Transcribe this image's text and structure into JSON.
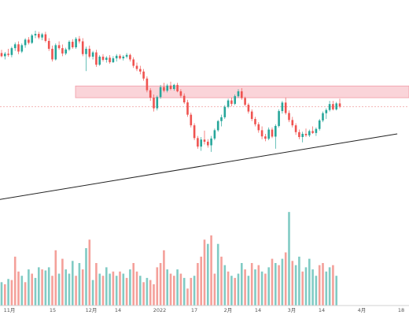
{
  "colors": {
    "up": "#26a69a",
    "down": "#ef5350",
    "volume_up": "#80cbc4",
    "volume_down": "#f4a09a",
    "zone_fill": "#f9c9cf",
    "zone_stroke": "#f19aa6",
    "trendline": "#222222",
    "price_line": "#f0a0a0",
    "axis": "#d0d0d0",
    "background": "#ffffff"
  },
  "chart_data": {
    "type": "candlestick",
    "title": "",
    "xlabel": "",
    "ylabel": "",
    "x_ticks": [
      "11月",
      "15",
      "12月",
      "14",
      "2022",
      "17",
      "2月",
      "14",
      "3月",
      "14",
      "4月",
      "18"
    ],
    "grid": false,
    "legend": "none",
    "ylim": [
      0,
      100
    ],
    "volume_ylim": [
      0,
      100
    ],
    "candles": [
      {
        "o": 79.5,
        "h": 81.0,
        "l": 77.5,
        "c": 78.0
      },
      {
        "o": 78.0,
        "h": 80.0,
        "l": 76.5,
        "c": 79.2
      },
      {
        "o": 79.2,
        "h": 81.5,
        "l": 77.8,
        "c": 78.6
      },
      {
        "o": 78.6,
        "h": 82.5,
        "l": 77.5,
        "c": 81.8
      },
      {
        "o": 81.8,
        "h": 84.5,
        "l": 80.5,
        "c": 83.6
      },
      {
        "o": 83.6,
        "h": 85.0,
        "l": 79.0,
        "c": 80.2
      },
      {
        "o": 80.2,
        "h": 84.0,
        "l": 79.5,
        "c": 83.2
      },
      {
        "o": 83.2,
        "h": 86.5,
        "l": 82.0,
        "c": 85.8
      },
      {
        "o": 85.8,
        "h": 87.0,
        "l": 83.5,
        "c": 84.3
      },
      {
        "o": 84.3,
        "h": 88.5,
        "l": 83.8,
        "c": 87.8
      },
      {
        "o": 87.8,
        "h": 90.0,
        "l": 86.5,
        "c": 88.5
      },
      {
        "o": 88.5,
        "h": 89.5,
        "l": 86.0,
        "c": 86.8
      },
      {
        "o": 86.8,
        "h": 89.0,
        "l": 85.5,
        "c": 88.3
      },
      {
        "o": 88.3,
        "h": 89.5,
        "l": 84.5,
        "c": 85.2
      },
      {
        "o": 85.2,
        "h": 86.5,
        "l": 80.5,
        "c": 81.5
      },
      {
        "o": 81.5,
        "h": 83.0,
        "l": 75.5,
        "c": 76.5
      },
      {
        "o": 76.5,
        "h": 84.0,
        "l": 76.0,
        "c": 83.2
      },
      {
        "o": 83.2,
        "h": 85.0,
        "l": 81.0,
        "c": 81.8
      },
      {
        "o": 81.8,
        "h": 83.5,
        "l": 78.0,
        "c": 79.3
      },
      {
        "o": 79.3,
        "h": 82.0,
        "l": 78.5,
        "c": 81.2
      },
      {
        "o": 81.2,
        "h": 85.5,
        "l": 80.5,
        "c": 84.8
      },
      {
        "o": 84.8,
        "h": 86.0,
        "l": 81.5,
        "c": 82.2
      },
      {
        "o": 82.2,
        "h": 87.0,
        "l": 81.5,
        "c": 86.2
      },
      {
        "o": 86.2,
        "h": 87.5,
        "l": 84.0,
        "c": 85.0
      },
      {
        "o": 85.0,
        "h": 86.5,
        "l": 78.0,
        "c": 79.0
      },
      {
        "o": 79.0,
        "h": 82.5,
        "l": 71.0,
        "c": 81.5
      },
      {
        "o": 81.5,
        "h": 83.0,
        "l": 77.0,
        "c": 77.8
      },
      {
        "o": 77.8,
        "h": 80.5,
        "l": 76.5,
        "c": 79.8
      },
      {
        "o": 79.8,
        "h": 81.0,
        "l": 73.0,
        "c": 74.0
      },
      {
        "o": 74.0,
        "h": 78.5,
        "l": 73.5,
        "c": 77.8
      },
      {
        "o": 77.8,
        "h": 79.0,
        "l": 75.5,
        "c": 76.3
      },
      {
        "o": 76.3,
        "h": 78.0,
        "l": 75.0,
        "c": 77.3
      },
      {
        "o": 77.3,
        "h": 78.5,
        "l": 74.5,
        "c": 75.2
      },
      {
        "o": 75.2,
        "h": 78.0,
        "l": 74.8,
        "c": 77.0
      },
      {
        "o": 77.0,
        "h": 79.0,
        "l": 75.5,
        "c": 78.2
      },
      {
        "o": 78.2,
        "h": 79.0,
        "l": 76.5,
        "c": 77.0
      },
      {
        "o": 77.0,
        "h": 78.5,
        "l": 76.0,
        "c": 77.8
      },
      {
        "o": 77.8,
        "h": 79.5,
        "l": 77.0,
        "c": 78.6
      },
      {
        "o": 78.6,
        "h": 79.2,
        "l": 75.5,
        "c": 76.5
      },
      {
        "o": 76.5,
        "h": 77.5,
        "l": 72.5,
        "c": 73.5
      },
      {
        "o": 73.5,
        "h": 75.0,
        "l": 71.0,
        "c": 72.0
      },
      {
        "o": 72.0,
        "h": 73.5,
        "l": 69.5,
        "c": 70.8
      },
      {
        "o": 70.8,
        "h": 72.0,
        "l": 66.5,
        "c": 67.5
      },
      {
        "o": 67.5,
        "h": 68.5,
        "l": 61.0,
        "c": 62.0
      },
      {
        "o": 62.0,
        "h": 63.0,
        "l": 57.0,
        "c": 58.5
      },
      {
        "o": 58.5,
        "h": 60.0,
        "l": 52.0,
        "c": 53.5
      },
      {
        "o": 53.5,
        "h": 59.5,
        "l": 52.5,
        "c": 58.8
      },
      {
        "o": 58.8,
        "h": 64.5,
        "l": 58.0,
        "c": 63.5
      },
      {
        "o": 63.5,
        "h": 65.5,
        "l": 61.0,
        "c": 61.8
      },
      {
        "o": 61.8,
        "h": 65.0,
        "l": 61.0,
        "c": 64.2
      },
      {
        "o": 64.2,
        "h": 66.0,
        "l": 62.0,
        "c": 62.6
      },
      {
        "o": 62.6,
        "h": 65.0,
        "l": 61.8,
        "c": 64.5
      },
      {
        "o": 64.5,
        "h": 65.5,
        "l": 61.0,
        "c": 61.5
      },
      {
        "o": 61.5,
        "h": 62.5,
        "l": 58.5,
        "c": 59.4
      },
      {
        "o": 59.4,
        "h": 60.5,
        "l": 55.5,
        "c": 56.3
      },
      {
        "o": 56.3,
        "h": 57.5,
        "l": 49.5,
        "c": 50.5
      },
      {
        "o": 50.5,
        "h": 51.5,
        "l": 44.5,
        "c": 45.5
      },
      {
        "o": 45.5,
        "h": 46.5,
        "l": 38.5,
        "c": 39.5
      },
      {
        "o": 39.5,
        "h": 40.5,
        "l": 34.5,
        "c": 35.5
      },
      {
        "o": 35.5,
        "h": 40.0,
        "l": 33.5,
        "c": 38.8
      },
      {
        "o": 38.8,
        "h": 43.0,
        "l": 36.5,
        "c": 37.8
      },
      {
        "o": 37.8,
        "h": 39.0,
        "l": 35.0,
        "c": 36.1
      },
      {
        "o": 36.1,
        "h": 40.5,
        "l": 33.0,
        "c": 39.3
      },
      {
        "o": 39.3,
        "h": 44.0,
        "l": 38.5,
        "c": 43.2
      },
      {
        "o": 43.2,
        "h": 48.0,
        "l": 42.5,
        "c": 47.5
      },
      {
        "o": 47.5,
        "h": 50.5,
        "l": 45.0,
        "c": 49.3
      },
      {
        "o": 49.3,
        "h": 55.0,
        "l": 48.5,
        "c": 54.2
      },
      {
        "o": 54.2,
        "h": 58.0,
        "l": 53.5,
        "c": 57.2
      },
      {
        "o": 57.2,
        "h": 58.5,
        "l": 54.5,
        "c": 55.6
      },
      {
        "o": 55.6,
        "h": 60.0,
        "l": 55.0,
        "c": 59.2
      },
      {
        "o": 59.2,
        "h": 62.5,
        "l": 58.5,
        "c": 61.5
      },
      {
        "o": 61.5,
        "h": 63.0,
        "l": 57.5,
        "c": 58.3
      },
      {
        "o": 58.3,
        "h": 59.0,
        "l": 54.5,
        "c": 55.2
      },
      {
        "o": 55.2,
        "h": 56.0,
        "l": 51.0,
        "c": 52.0
      },
      {
        "o": 52.0,
        "h": 53.0,
        "l": 47.5,
        "c": 48.5
      },
      {
        "o": 48.5,
        "h": 49.5,
        "l": 45.0,
        "c": 46.0
      },
      {
        "o": 46.0,
        "h": 47.0,
        "l": 42.0,
        "c": 43.2
      },
      {
        "o": 43.2,
        "h": 45.0,
        "l": 39.0,
        "c": 40.3
      },
      {
        "o": 40.3,
        "h": 41.5,
        "l": 38.0,
        "c": 39.2
      },
      {
        "o": 39.2,
        "h": 44.5,
        "l": 38.5,
        "c": 43.5
      },
      {
        "o": 43.5,
        "h": 44.5,
        "l": 39.5,
        "c": 40.2
      },
      {
        "o": 40.2,
        "h": 46.0,
        "l": 34.5,
        "c": 45.2
      },
      {
        "o": 45.2,
        "h": 53.0,
        "l": 44.5,
        "c": 52.2
      },
      {
        "o": 52.2,
        "h": 57.0,
        "l": 51.0,
        "c": 56.2
      },
      {
        "o": 56.2,
        "h": 58.5,
        "l": 50.5,
        "c": 51.3
      },
      {
        "o": 51.3,
        "h": 52.5,
        "l": 47.0,
        "c": 48.0
      },
      {
        "o": 48.0,
        "h": 49.5,
        "l": 44.5,
        "c": 45.5
      },
      {
        "o": 45.5,
        "h": 46.5,
        "l": 41.0,
        "c": 42.3
      },
      {
        "o": 42.3,
        "h": 43.5,
        "l": 39.0,
        "c": 40.0
      },
      {
        "o": 40.0,
        "h": 42.5,
        "l": 37.5,
        "c": 41.5
      },
      {
        "o": 41.5,
        "h": 44.0,
        "l": 40.0,
        "c": 40.8
      },
      {
        "o": 40.8,
        "h": 43.5,
        "l": 40.0,
        "c": 42.8
      },
      {
        "o": 42.8,
        "h": 45.0,
        "l": 41.5,
        "c": 41.9
      },
      {
        "o": 41.9,
        "h": 44.5,
        "l": 40.5,
        "c": 43.8
      },
      {
        "o": 43.8,
        "h": 48.5,
        "l": 43.0,
        "c": 47.8
      },
      {
        "o": 47.8,
        "h": 52.0,
        "l": 47.0,
        "c": 51.2
      },
      {
        "o": 51.2,
        "h": 53.5,
        "l": 48.5,
        "c": 52.7
      },
      {
        "o": 52.7,
        "h": 57.0,
        "l": 52.0,
        "c": 55.5
      },
      {
        "o": 55.5,
        "h": 57.0,
        "l": 52.5,
        "c": 53.0
      },
      {
        "o": 53.0,
        "h": 56.5,
        "l": 52.5,
        "c": 55.8
      },
      {
        "o": 55.8,
        "h": 58.0,
        "l": 53.5,
        "c": 54.3
      }
    ],
    "volume": [
      {
        "v": 22,
        "d": "up"
      },
      {
        "v": 20,
        "d": "down"
      },
      {
        "v": 25,
        "d": "up"
      },
      {
        "v": 24,
        "d": "down"
      },
      {
        "v": 46,
        "d": "down"
      },
      {
        "v": 32,
        "d": "down"
      },
      {
        "v": 28,
        "d": "up"
      },
      {
        "v": 22,
        "d": "down"
      },
      {
        "v": 34,
        "d": "up"
      },
      {
        "v": 30,
        "d": "down"
      },
      {
        "v": 26,
        "d": "up"
      },
      {
        "v": 36,
        "d": "up"
      },
      {
        "v": 34,
        "d": "down"
      },
      {
        "v": 33,
        "d": "up"
      },
      {
        "v": 36,
        "d": "up"
      },
      {
        "v": 28,
        "d": "down"
      },
      {
        "v": 52,
        "d": "down"
      },
      {
        "v": 30,
        "d": "up"
      },
      {
        "v": 44,
        "d": "down"
      },
      {
        "v": 34,
        "d": "up"
      },
      {
        "v": 30,
        "d": "up"
      },
      {
        "v": 42,
        "d": "up"
      },
      {
        "v": 28,
        "d": "down"
      },
      {
        "v": 40,
        "d": "up"
      },
      {
        "v": 34,
        "d": "down"
      },
      {
        "v": 54,
        "d": "up"
      },
      {
        "v": 62,
        "d": "down"
      },
      {
        "v": 24,
        "d": "up"
      },
      {
        "v": 40,
        "d": "down"
      },
      {
        "v": 30,
        "d": "up"
      },
      {
        "v": 28,
        "d": "down"
      },
      {
        "v": 36,
        "d": "up"
      },
      {
        "v": 30,
        "d": "up"
      },
      {
        "v": 32,
        "d": "down"
      },
      {
        "v": 28,
        "d": "up"
      },
      {
        "v": 32,
        "d": "down"
      },
      {
        "v": 30,
        "d": "up"
      },
      {
        "v": 26,
        "d": "down"
      },
      {
        "v": 34,
        "d": "up"
      },
      {
        "v": 40,
        "d": "down"
      },
      {
        "v": 32,
        "d": "down"
      },
      {
        "v": 28,
        "d": "up"
      },
      {
        "v": 22,
        "d": "down"
      },
      {
        "v": 26,
        "d": "up"
      },
      {
        "v": 24,
        "d": "down"
      },
      {
        "v": 20,
        "d": "down"
      },
      {
        "v": 36,
        "d": "down"
      },
      {
        "v": 40,
        "d": "down"
      },
      {
        "v": 52,
        "d": "down"
      },
      {
        "v": 34,
        "d": "up"
      },
      {
        "v": 30,
        "d": "down"
      },
      {
        "v": 28,
        "d": "down"
      },
      {
        "v": 34,
        "d": "up"
      },
      {
        "v": 30,
        "d": "down"
      },
      {
        "v": 26,
        "d": "up"
      },
      {
        "v": 16,
        "d": "down"
      },
      {
        "v": 26,
        "d": "down"
      },
      {
        "v": 28,
        "d": "up"
      },
      {
        "v": 40,
        "d": "down"
      },
      {
        "v": 46,
        "d": "down"
      },
      {
        "v": 62,
        "d": "down"
      },
      {
        "v": 58,
        "d": "up"
      },
      {
        "v": 66,
        "d": "down"
      },
      {
        "v": 30,
        "d": "down"
      },
      {
        "v": 58,
        "d": "up"
      },
      {
        "v": 46,
        "d": "down"
      },
      {
        "v": 38,
        "d": "up"
      },
      {
        "v": 32,
        "d": "down"
      },
      {
        "v": 28,
        "d": "up"
      },
      {
        "v": 26,
        "d": "down"
      },
      {
        "v": 30,
        "d": "up"
      },
      {
        "v": 40,
        "d": "up"
      },
      {
        "v": 34,
        "d": "down"
      },
      {
        "v": 28,
        "d": "up"
      },
      {
        "v": 40,
        "d": "down"
      },
      {
        "v": 34,
        "d": "up"
      },
      {
        "v": 38,
        "d": "down"
      },
      {
        "v": 32,
        "d": "up"
      },
      {
        "v": 30,
        "d": "down"
      },
      {
        "v": 36,
        "d": "up"
      },
      {
        "v": 44,
        "d": "down"
      },
      {
        "v": 40,
        "d": "up"
      },
      {
        "v": 38,
        "d": "down"
      },
      {
        "v": 44,
        "d": "up"
      },
      {
        "v": 50,
        "d": "down"
      },
      {
        "v": 88,
        "d": "up"
      },
      {
        "v": 42,
        "d": "down"
      },
      {
        "v": 38,
        "d": "up"
      },
      {
        "v": 46,
        "d": "up"
      },
      {
        "v": 32,
        "d": "down"
      },
      {
        "v": 36,
        "d": "up"
      },
      {
        "v": 44,
        "d": "up"
      },
      {
        "v": 34,
        "d": "up"
      },
      {
        "v": 28,
        "d": "up"
      },
      {
        "v": 38,
        "d": "down"
      },
      {
        "v": 40,
        "d": "down"
      },
      {
        "v": 32,
        "d": "up"
      },
      {
        "v": 36,
        "d": "up"
      },
      {
        "v": 38,
        "d": "down"
      },
      {
        "v": 28,
        "d": "up"
      }
    ],
    "resistance_zone": {
      "y_top": 64.0,
      "y_bottom": 58.5
    },
    "last_price": 54.3,
    "trendline": {
      "start_index": -22,
      "start_y": 5.0,
      "end_index": 117,
      "end_y": 41.5
    }
  }
}
